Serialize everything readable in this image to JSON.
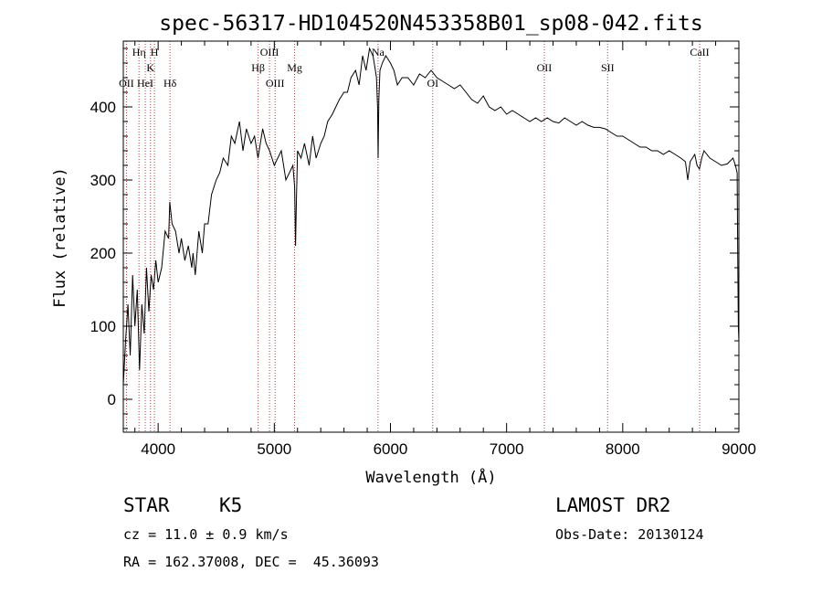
{
  "chart_data": {
    "type": "line",
    "title": "spec-56317-HD104520N453358B01_sp08-042.fits",
    "xlabel": "Wavelength (Å)",
    "ylabel": "Flux (relative)",
    "xlim": [
      3700,
      9000
    ],
    "ylim": [
      -45,
      490
    ],
    "xticks": [
      4000,
      5000,
      6000,
      7000,
      8000,
      9000
    ],
    "yticks": [
      0,
      100,
      200,
      300,
      400
    ],
    "grid": false,
    "series": [
      {
        "x": [
          3700,
          3720,
          3740,
          3760,
          3780,
          3800,
          3820,
          3840,
          3860,
          3880,
          3900,
          3920,
          3940,
          3960,
          3980,
          4000,
          4030,
          4060,
          4090,
          4100,
          4120,
          4150,
          4180,
          4200,
          4230,
          4260,
          4290,
          4300,
          4320,
          4350,
          4380,
          4400,
          4430,
          4460,
          4500,
          4530,
          4560,
          4600,
          4630,
          4660,
          4700,
          4730,
          4760,
          4800,
          4830,
          4860,
          4900,
          4930,
          4960,
          5000,
          5030,
          5060,
          5100,
          5130,
          5160,
          5175,
          5183,
          5190,
          5200,
          5230,
          5260,
          5300,
          5330,
          5360,
          5400,
          5430,
          5460,
          5500,
          5530,
          5560,
          5600,
          5630,
          5660,
          5700,
          5730,
          5760,
          5790,
          5820,
          5850,
          5870,
          5880,
          5889,
          5894,
          5900,
          5910,
          5930,
          5960,
          6000,
          6030,
          6060,
          6100,
          6150,
          6200,
          6250,
          6300,
          6350,
          6400,
          6450,
          6500,
          6550,
          6600,
          6650,
          6700,
          6750,
          6800,
          6850,
          6900,
          6950,
          7000,
          7050,
          7100,
          7150,
          7200,
          7250,
          7300,
          7350,
          7400,
          7450,
          7500,
          7550,
          7600,
          7650,
          7700,
          7750,
          7800,
          7850,
          7900,
          7950,
          8000,
          8050,
          8100,
          8150,
          8200,
          8250,
          8300,
          8350,
          8400,
          8450,
          8500,
          8540,
          8560,
          8580,
          8600,
          8620,
          8640,
          8660,
          8680,
          8700,
          8750,
          8800,
          8850,
          8900,
          8950,
          8970,
          8985,
          8990,
          8995,
          9000
        ],
        "values": [
          20,
          80,
          130,
          60,
          170,
          100,
          150,
          40,
          130,
          90,
          180,
          120,
          170,
          150,
          190,
          160,
          180,
          230,
          220,
          270,
          240,
          230,
          200,
          220,
          190,
          210,
          180,
          200,
          170,
          230,
          200,
          240,
          240,
          280,
          300,
          310,
          330,
          320,
          360,
          350,
          380,
          340,
          370,
          350,
          360,
          330,
          370,
          350,
          340,
          320,
          330,
          340,
          300,
          310,
          320,
          290,
          210,
          270,
          340,
          330,
          350,
          320,
          360,
          330,
          350,
          360,
          380,
          390,
          400,
          410,
          420,
          420,
          440,
          450,
          430,
          470,
          450,
          480,
          470,
          450,
          440,
          400,
          330,
          410,
          450,
          460,
          470,
          460,
          450,
          430,
          440,
          440,
          430,
          445,
          440,
          450,
          440,
          435,
          430,
          425,
          430,
          420,
          410,
          405,
          415,
          400,
          395,
          400,
          390,
          395,
          390,
          385,
          380,
          385,
          380,
          385,
          380,
          378,
          385,
          380,
          375,
          380,
          375,
          372,
          372,
          370,
          365,
          360,
          360,
          355,
          350,
          345,
          345,
          340,
          340,
          335,
          340,
          335,
          330,
          325,
          300,
          325,
          330,
          335,
          320,
          315,
          330,
          340,
          330,
          325,
          320,
          322,
          330,
          320,
          310,
          200,
          100,
          80
        ]
      }
    ],
    "annotations": [
      {
        "label": "OII",
        "x": 3727,
        "level": "low"
      },
      {
        "label": "Hη",
        "x": 3835,
        "level": "top"
      },
      {
        "label": "HeI",
        "x": 3889,
        "level": "low"
      },
      {
        "label": "K",
        "x": 3934,
        "level": "mid"
      },
      {
        "label": "H",
        "x": 3968,
        "level": "top"
      },
      {
        "label": "Hδ",
        "x": 4102,
        "level": "low"
      },
      {
        "label": "Hβ",
        "x": 4861,
        "level": "mid"
      },
      {
        "label": "OIII",
        "x": 4959,
        "level": "top"
      },
      {
        "label": "OIII",
        "x": 5007,
        "level": "low"
      },
      {
        "label": "Mg",
        "x": 5175,
        "level": "mid"
      },
      {
        "label": "Na",
        "x": 5893,
        "level": "top"
      },
      {
        "label": "OI",
        "x": 6364,
        "level": "low"
      },
      {
        "label": "OII",
        "x": 7325,
        "level": "mid"
      },
      {
        "label": "SII",
        "x": 7870,
        "level": "mid"
      },
      {
        "label": "CaII",
        "x": 8662,
        "level": "top"
      }
    ]
  },
  "info": {
    "object_class": "STAR",
    "subclass": "K5",
    "survey": "LAMOST DR2",
    "redshift": "cz = 11.0 ± 0.9 km/s",
    "obs_date": "Obs-Date: 20130124",
    "coords": "RA = 162.37008, DEC =  45.36093"
  }
}
